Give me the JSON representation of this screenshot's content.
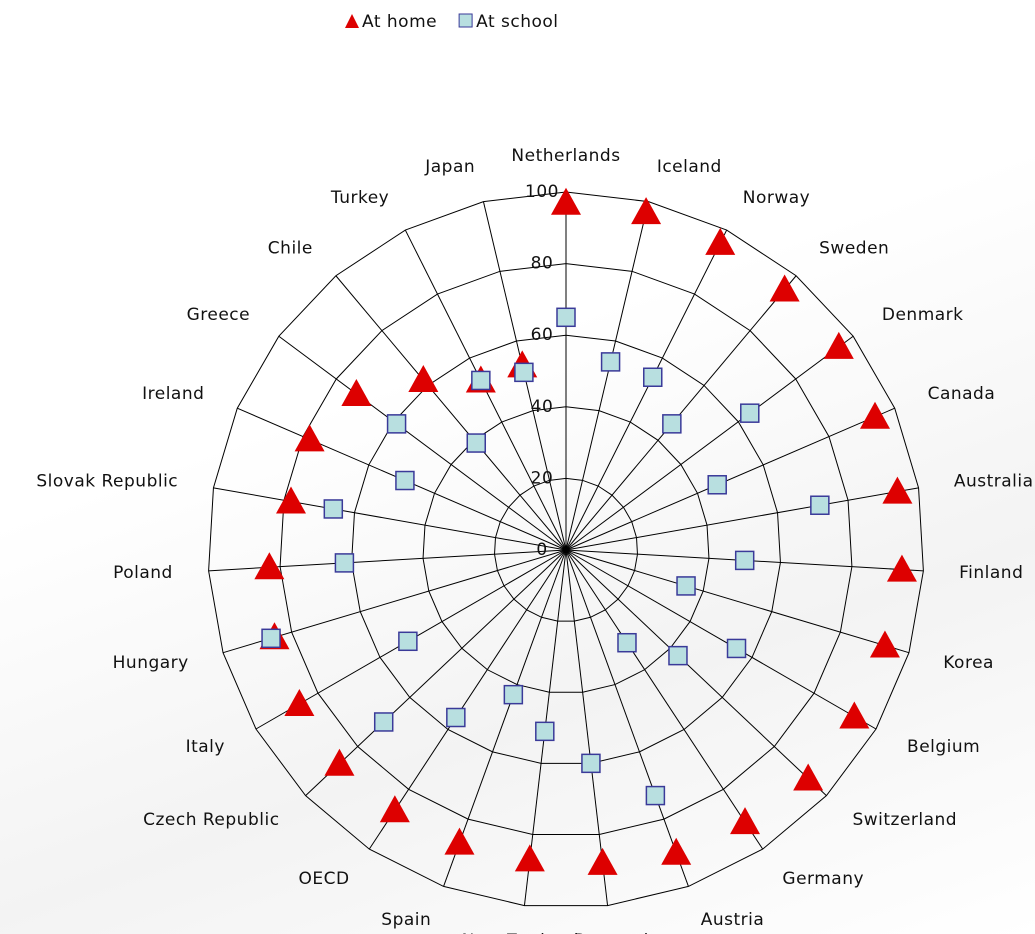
{
  "chart_data": {
    "type": "radar",
    "categories": [
      "Netherlands",
      "Iceland",
      "Norway",
      "Sweden",
      "Denmark",
      "Canada",
      "Australia",
      "Finland",
      "Korea",
      "Belgium",
      "Switzerland",
      "Germany",
      "Austria",
      "Portugal",
      "New Zealand",
      "Spain",
      "OECD",
      "Czech Republic",
      "Italy",
      "Hungary",
      "Poland",
      "Slovak Republic",
      "Ireland",
      "Greece",
      "Chile",
      "Turkey",
      "Japan"
    ],
    "series": [
      {
        "name": "At home",
        "color": "#dd0000",
        "marker": "triangle",
        "values": [
          97,
          97,
          96,
          95,
          95,
          94,
          94,
          94,
          93,
          93,
          93,
          91,
          90,
          88,
          87,
          87,
          87,
          87,
          86,
          85,
          83,
          78,
          78,
          73,
          62,
          53,
          53
        ]
      },
      {
        "name": "At school",
        "color": "#b8dfe0",
        "marker": "square",
        "values": [
          65,
          54,
          54,
          46,
          64,
          46,
          72,
          50,
          35,
          55,
          43,
          31,
          73,
          60,
          51,
          43,
          56,
          70,
          51,
          86,
          62,
          66,
          49,
          59,
          39,
          53,
          51
        ]
      }
    ],
    "ylim": [
      0,
      100
    ],
    "yticks": [
      0,
      20,
      40,
      60,
      80,
      100
    ],
    "grid": true,
    "legend": "top"
  }
}
